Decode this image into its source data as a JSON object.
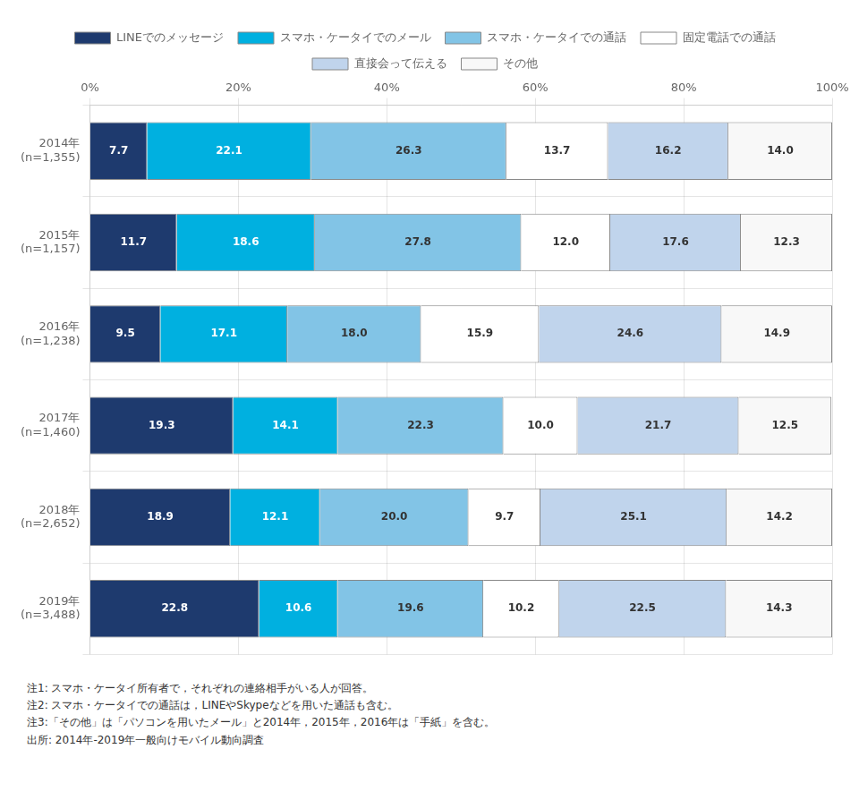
{
  "chart_data": {
    "type": "bar",
    "orientation": "horizontal",
    "stacked": true,
    "data_labels": true,
    "grid": true,
    "legend": "top",
    "categories": [
      "2014年\n(n=1,355)",
      "2015年\n(n=1,157)",
      "2016年\n(n=1,238)",
      "2017年\n(n=1,460)",
      "2018年\n(n=2,652)",
      "2019年\n(n=3,488)"
    ],
    "series": [
      {
        "name": "LINEでのメッセージ",
        "color": "#1e3a6e",
        "values": [
          7.7,
          11.7,
          9.5,
          19.3,
          18.9,
          22.8
        ],
        "value_labels": [
          "7.7",
          "11.7",
          "9.5",
          "19.3",
          "18.9",
          "22.8"
        ]
      },
      {
        "name": "スマホ・ケータイでのメール",
        "color": "#00b0e0",
        "values": [
          22.1,
          18.6,
          17.1,
          14.1,
          12.1,
          10.6
        ],
        "value_labels": [
          "22.1",
          "18.6",
          "17.1",
          "14.1",
          "12.1",
          "10.6"
        ]
      },
      {
        "name": "スマホ・ケータイでの通話",
        "color": "#82c4e6",
        "values": [
          26.3,
          27.8,
          18.0,
          22.3,
          20.0,
          19.6
        ],
        "value_labels": [
          "26.3",
          "27.8",
          "18.0",
          "22.3",
          "20.0",
          "19.6"
        ]
      },
      {
        "name": "固定電話での通話",
        "color": "#ffffff",
        "values": [
          13.7,
          12.0,
          15.9,
          10.0,
          9.7,
          10.2
        ],
        "value_labels": [
          "13.7",
          "12.0",
          "15.9",
          "10.0",
          "9.7",
          "10.2"
        ]
      },
      {
        "name": "直接会って伝える",
        "color": "#c0d4ec",
        "values": [
          16.2,
          17.6,
          24.6,
          21.7,
          25.1,
          22.5
        ],
        "value_labels": [
          "16.2",
          "17.6",
          "24.6",
          "21.7",
          "25.1",
          "22.5"
        ]
      },
      {
        "name": "その他",
        "color": "#f8f8f8",
        "values": [
          14.0,
          12.3,
          14.9,
          12.5,
          14.2,
          14.3
        ],
        "value_labels": [
          "14.0",
          "12.3",
          "14.9",
          "12.5",
          "14.2",
          "14.3"
        ]
      }
    ],
    "xlim": [
      0,
      100
    ],
    "xticks": [
      {
        "value": 0,
        "label": "0%"
      },
      {
        "value": 20,
        "label": "20%"
      },
      {
        "value": 40,
        "label": "40%"
      },
      {
        "value": 60,
        "label": "60%"
      },
      {
        "value": 80,
        "label": "80%"
      },
      {
        "value": 100,
        "label": "100%"
      }
    ],
    "annotations": [
      "注1: スマホ・ケータイ所有者で，それぞれの連絡相手がいる人が回答。",
      "注2: スマホ・ケータイでの通話は，LINEやSkypeなどを用いた通話も含む。",
      "注3:「その他」は「パソコンを用いたメール」と2014年，2015年，2016年は「手紙」を含む。",
      "出所: 2014年-2019年一般向けモバイル動向調査"
    ]
  }
}
